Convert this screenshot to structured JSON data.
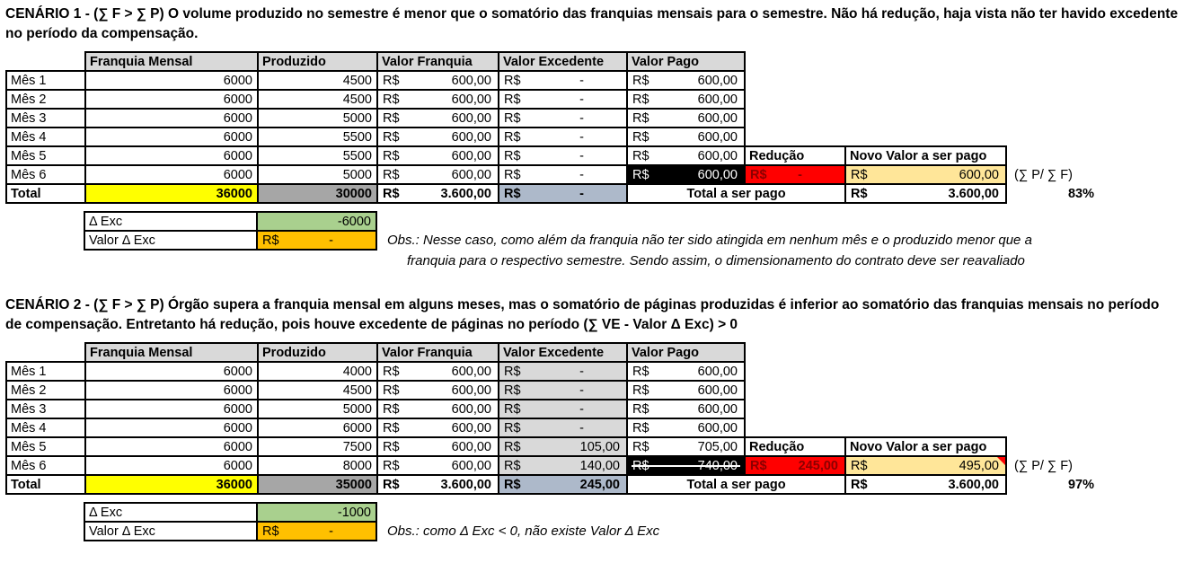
{
  "currency": "R$",
  "headers": [
    "Franquia Mensal",
    "Produzido",
    "Valor Franquia",
    "Valor Excedente",
    "Valor Pago"
  ],
  "labels": {
    "reducao": "Redução",
    "novo_valor": "Novo Valor a ser pago",
    "total": "Total",
    "total_a_ser_pago": "Total a ser pago",
    "annotation": "(∑ P/ ∑ F)",
    "delta_exc": "Δ Exc",
    "valor_delta_exc": "Valor Δ Exc"
  },
  "colors": {
    "header_bg": "#d9d9d9",
    "total_franquia_bg": "#ffff00",
    "total_produzido_bg": "#a6a6a6",
    "total_excedente_bg": "#adb9ca",
    "paid_black_bg": "#000000",
    "reducao_red_bg": "#ff0000",
    "novo_valor_tan_bg": "#ffe699",
    "delta_green_bg": "#a9d08e",
    "delta_orange_bg": "#ffc000"
  },
  "scenarios": [
    {
      "title": "CENÁRIO 1 - (∑ F > ∑ P) O volume produzido no semestre é menor que o somatório das franquias mensais para o semestre. Não há redução, haja vista não ter havido excedente no período da compensação.",
      "rows": [
        {
          "label": "Mês 1",
          "franquia": "6000",
          "produzido": "4500",
          "valor_franquia": "600,00",
          "valor_excedente": "-",
          "valor_pago": "600,00"
        },
        {
          "label": "Mês 2",
          "franquia": "6000",
          "produzido": "4500",
          "valor_franquia": "600,00",
          "valor_excedente": "-",
          "valor_pago": "600,00"
        },
        {
          "label": "Mês 3",
          "franquia": "6000",
          "produzido": "5000",
          "valor_franquia": "600,00",
          "valor_excedente": "-",
          "valor_pago": "600,00"
        },
        {
          "label": "Mês 4",
          "franquia": "6000",
          "produzido": "5500",
          "valor_franquia": "600,00",
          "valor_excedente": "-",
          "valor_pago": "600,00"
        },
        {
          "label": "Mês 5",
          "franquia": "6000",
          "produzido": "5500",
          "valor_franquia": "600,00",
          "valor_excedente": "-",
          "valor_pago": "600,00"
        },
        {
          "label": "Mês 6",
          "franquia": "6000",
          "produzido": "5000",
          "valor_franquia": "600,00",
          "valor_excedente": "-",
          "valor_pago": "600,00"
        }
      ],
      "mes6_reducao": "-",
      "mes6_novo_valor": "600,00",
      "total": {
        "franquia": "36000",
        "produzido": "30000",
        "valor_franquia": "3.600,00",
        "valor_excedente": "-",
        "novo_valor": "3.600,00",
        "percent": "83%"
      },
      "delta_exc": "-6000",
      "valor_delta_exc": "-",
      "obs_line1": "Obs.: Nesse caso, como além da franquia não ter sido atingida em nenhum mês e o produzido menor que a",
      "obs_line2": "franquia para o respectivo semestre. Sendo assim, o dimensionamento do contrato deve ser reavaliado"
    },
    {
      "title": "CENÁRIO 2 - (∑ F > ∑ P) Órgão supera a franquia mensal em alguns meses, mas o somatório de páginas produzidas é inferior ao somatório das franquias mensais no período de compensação. Entretanto há redução, pois houve excedente de páginas no período (∑ VE - Valor Δ Exc) > 0",
      "rows": [
        {
          "label": "Mês 1",
          "franquia": "6000",
          "produzido": "4000",
          "valor_franquia": "600,00",
          "valor_excedente": "-",
          "valor_pago": "600,00"
        },
        {
          "label": "Mês 2",
          "franquia": "6000",
          "produzido": "4500",
          "valor_franquia": "600,00",
          "valor_excedente": "-",
          "valor_pago": "600,00"
        },
        {
          "label": "Mês 3",
          "franquia": "6000",
          "produzido": "5000",
          "valor_franquia": "600,00",
          "valor_excedente": "-",
          "valor_pago": "600,00"
        },
        {
          "label": "Mês 4",
          "franquia": "6000",
          "produzido": "6000",
          "valor_franquia": "600,00",
          "valor_excedente": "-",
          "valor_pago": "600,00"
        },
        {
          "label": "Mês 5",
          "franquia": "6000",
          "produzido": "7500",
          "valor_franquia": "600,00",
          "valor_excedente": "105,00",
          "valor_pago": "705,00"
        },
        {
          "label": "Mês 6",
          "franquia": "6000",
          "produzido": "8000",
          "valor_franquia": "600,00",
          "valor_excedente": "140,00",
          "valor_pago": "740,00"
        }
      ],
      "mes6_reducao": "245,00",
      "mes6_novo_valor": "495,00",
      "total": {
        "franquia": "36000",
        "produzido": "35000",
        "valor_franquia": "3.600,00",
        "valor_excedente": "245,00",
        "novo_valor": "3.600,00",
        "percent": "97%"
      },
      "delta_exc": "-1000",
      "valor_delta_exc": "-",
      "obs_line1": "Obs.: como Δ Exc < 0, não existe Valor Δ Exc"
    }
  ]
}
